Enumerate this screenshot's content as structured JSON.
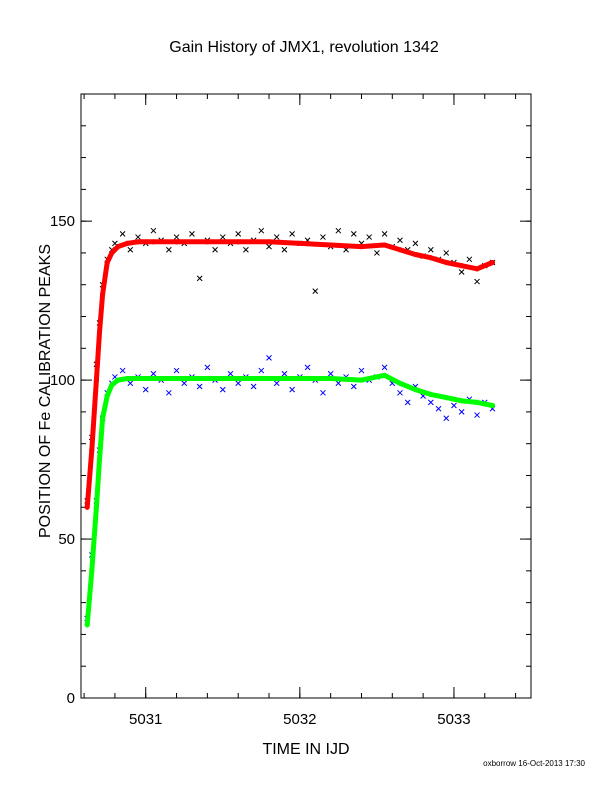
{
  "chart_data": {
    "type": "scatter",
    "title": "Gain History of JMX1, revolution 1342",
    "xlabel": "TIME IN IJD",
    "ylabel": "POSITION OF Fe CALIBRATION PEAKS",
    "footer": "oxborrow 16-Oct-2013 17:30",
    "xlim": [
      5030.58,
      5033.5
    ],
    "ylim": [
      0,
      190
    ],
    "x_ticks": [
      {
        "value": 5031,
        "label": "5031"
      },
      {
        "value": 5032,
        "label": "5032"
      },
      {
        "value": 5033,
        "label": "5033"
      }
    ],
    "y_ticks": [
      {
        "value": 0,
        "label": "0"
      },
      {
        "value": 50,
        "label": "50"
      },
      {
        "value": 100,
        "label": "100"
      },
      {
        "value": 150,
        "label": "150"
      }
    ],
    "grid": false,
    "legend": "none",
    "series": [
      {
        "marker": "x",
        "color": "#000000",
        "role": "upper peak measurements",
        "x": [
          5030.62,
          5030.65,
          5030.68,
          5030.7,
          5030.72,
          5030.75,
          5030.78,
          5030.8,
          5030.85,
          5030.9,
          5030.95,
          5031.0,
          5031.05,
          5031.1,
          5031.15,
          5031.2,
          5031.25,
          5031.3,
          5031.35,
          5031.4,
          5031.45,
          5031.5,
          5031.55,
          5031.6,
          5031.65,
          5031.7,
          5031.75,
          5031.8,
          5031.85,
          5031.9,
          5031.95,
          5032.0,
          5032.05,
          5032.1,
          5032.15,
          5032.2,
          5032.25,
          5032.3,
          5032.35,
          5032.4,
          5032.45,
          5032.5,
          5032.55,
          5032.6,
          5032.65,
          5032.7,
          5032.75,
          5032.8,
          5032.85,
          5032.9,
          5032.95,
          5033.0,
          5033.05,
          5033.1,
          5033.15,
          5033.2,
          5033.25
        ],
        "y": [
          62,
          82,
          105,
          118,
          130,
          138,
          141,
          143,
          146,
          141,
          145,
          143,
          147,
          144,
          141,
          145,
          143,
          146,
          132,
          144,
          141,
          145,
          143,
          146,
          141,
          144,
          147,
          142,
          145,
          141,
          146,
          143,
          144,
          128,
          145,
          142,
          147,
          141,
          146,
          143,
          145,
          140,
          146,
          142,
          144,
          141,
          143,
          139,
          141,
          138,
          140,
          137,
          134,
          138,
          131,
          136,
          137
        ]
      },
      {
        "marker": "x",
        "color": "#0000ff",
        "role": "lower peak measurements",
        "x": [
          5030.62,
          5030.65,
          5030.68,
          5030.7,
          5030.72,
          5030.75,
          5030.78,
          5030.8,
          5030.85,
          5030.9,
          5030.95,
          5031.0,
          5031.05,
          5031.1,
          5031.15,
          5031.2,
          5031.25,
          5031.3,
          5031.35,
          5031.4,
          5031.45,
          5031.5,
          5031.55,
          5031.6,
          5031.65,
          5031.7,
          5031.75,
          5031.8,
          5031.85,
          5031.9,
          5031.95,
          5032.0,
          5032.05,
          5032.1,
          5032.15,
          5032.2,
          5032.25,
          5032.3,
          5032.35,
          5032.4,
          5032.45,
          5032.5,
          5032.55,
          5032.6,
          5032.65,
          5032.7,
          5032.75,
          5032.8,
          5032.85,
          5032.9,
          5032.95,
          5033.0,
          5033.05,
          5033.1,
          5033.15,
          5033.2,
          5033.25
        ],
        "y": [
          25,
          45,
          62,
          78,
          88,
          96,
          99,
          101,
          103,
          99,
          101,
          97,
          102,
          100,
          96,
          103,
          99,
          101,
          98,
          104,
          100,
          97,
          102,
          99,
          101,
          98,
          103,
          107,
          99,
          102,
          97,
          101,
          104,
          100,
          96,
          102,
          99,
          101,
          98,
          103,
          100,
          101,
          104,
          99,
          96,
          93,
          98,
          95,
          93,
          91,
          88,
          92,
          90,
          94,
          89,
          93,
          91
        ]
      },
      {
        "marker": "+",
        "color": "#ff0000",
        "role": "upper peak fit",
        "x": [
          5030.62,
          5030.65,
          5030.68,
          5030.7,
          5030.72,
          5030.75,
          5030.78,
          5030.82,
          5030.88,
          5030.95,
          5031.05,
          5031.2,
          5031.4,
          5031.6,
          5031.8,
          5032.0,
          5032.2,
          5032.4,
          5032.55,
          5032.65,
          5032.75,
          5032.85,
          5032.95,
          5033.05,
          5033.15,
          5033.25
        ],
        "y": [
          60,
          78,
          100,
          115,
          127,
          137,
          140,
          142,
          143,
          143.5,
          143.5,
          143.5,
          143.5,
          143.5,
          143.5,
          143,
          142.5,
          142,
          142.5,
          141,
          139.5,
          138.5,
          137,
          136,
          135,
          137
        ]
      },
      {
        "marker": "+",
        "color": "#00ff00",
        "role": "lower peak fit",
        "x": [
          5030.62,
          5030.65,
          5030.68,
          5030.7,
          5030.72,
          5030.75,
          5030.78,
          5030.82,
          5030.88,
          5030.95,
          5031.05,
          5031.2,
          5031.4,
          5031.6,
          5031.8,
          5032.0,
          5032.2,
          5032.4,
          5032.55,
          5032.65,
          5032.75,
          5032.85,
          5032.95,
          5033.05,
          5033.15,
          5033.25
        ],
        "y": [
          23,
          40,
          60,
          75,
          88,
          95,
          98.5,
          100,
          100.5,
          100.5,
          100.5,
          100.5,
          100.5,
          100.5,
          100.5,
          100.5,
          100.5,
          100,
          101.5,
          99,
          97,
          95.5,
          94.5,
          93.5,
          93,
          92
        ]
      }
    ]
  }
}
